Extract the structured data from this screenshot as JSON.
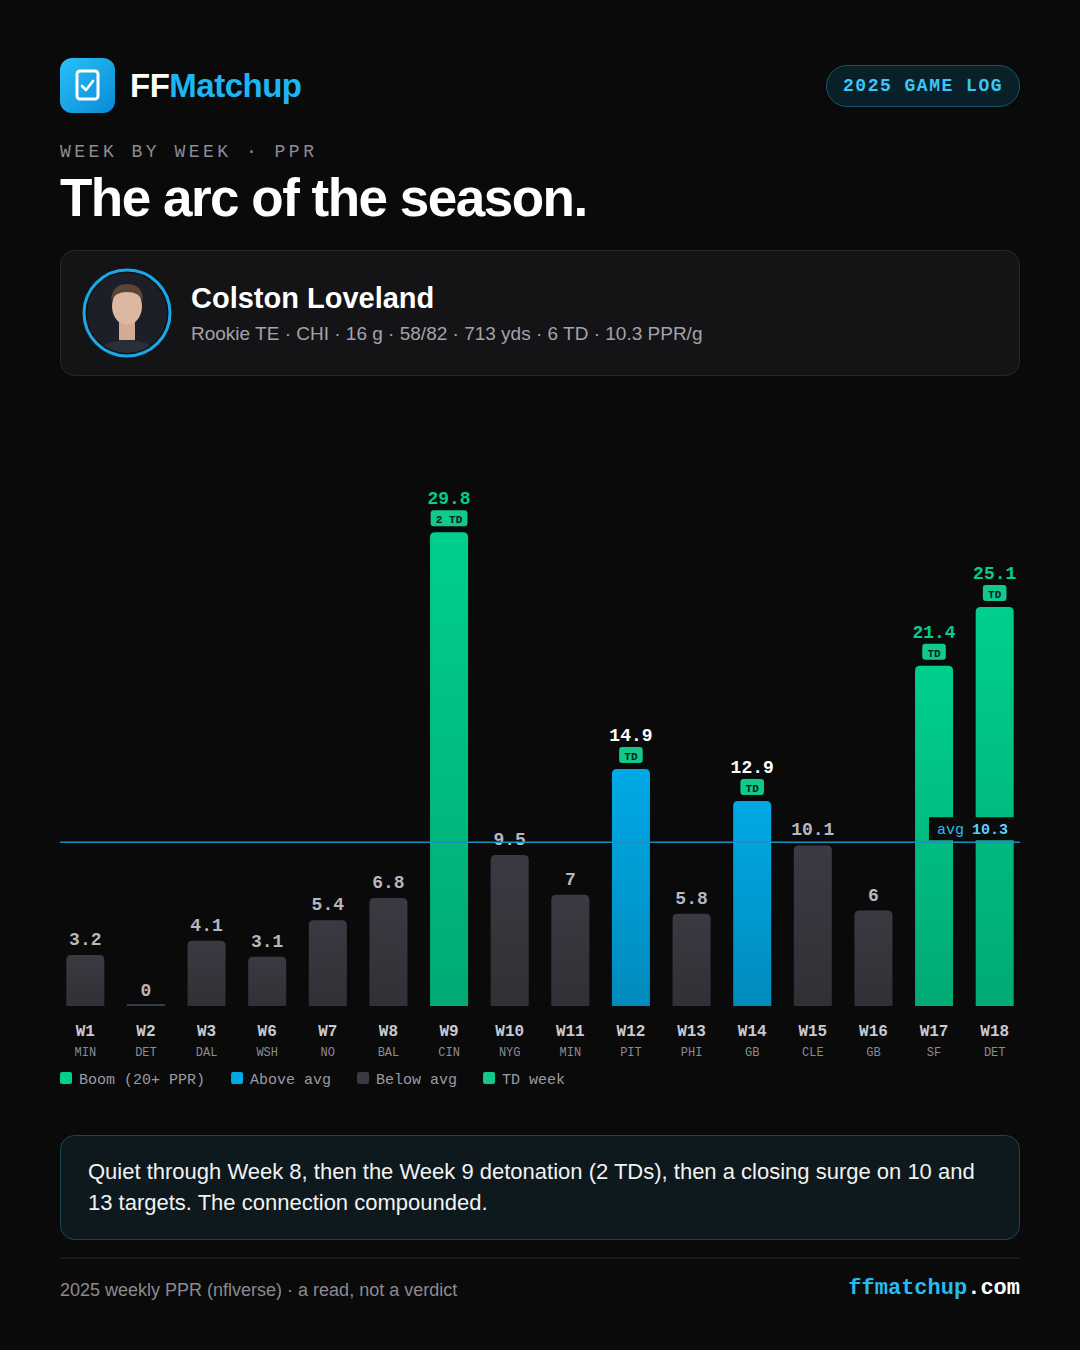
{
  "header": {
    "brand_prefix": "FF",
    "brand_suffix": "Matchup",
    "badge": "2025 GAME LOG",
    "kicker": "WEEK BY WEEK · PPR",
    "title": "The arc of the season."
  },
  "player": {
    "name": "Colston Loveland",
    "stats": "Rookie TE · CHI · 16 g · 58/82 · 713 yds · 6 TD · 10.3 PPR/g"
  },
  "chart_data": {
    "type": "bar",
    "categories": [
      "W1",
      "W2",
      "W3",
      "W6",
      "W7",
      "W8",
      "W9",
      "W10",
      "W11",
      "W12",
      "W13",
      "W14",
      "W15",
      "W16",
      "W17",
      "W18"
    ],
    "opponents": [
      "MIN",
      "DET",
      "DAL",
      "WSH",
      "NO",
      "BAL",
      "CIN",
      "NYG",
      "MIN",
      "PIT",
      "PHI",
      "GB",
      "CLE",
      "GB",
      "SF",
      "DET"
    ],
    "values": [
      3.2,
      0,
      4.1,
      3.1,
      5.4,
      6.8,
      29.8,
      9.5,
      7,
      14.9,
      5.8,
      12.9,
      10.1,
      6,
      21.4,
      25.1
    ],
    "colors": [
      "#3a3a42",
      "#3a3a42",
      "#3a3a42",
      "#3a3a42",
      "#3a3a42",
      "#3a3a42",
      "#00cf8d",
      "#3a3a42",
      "#3a3a42",
      "#00a9e6",
      "#3a3a42",
      "#00a9e6",
      "#3a3a42",
      "#3a3a42",
      "#00cf8d",
      "#00cf8d"
    ],
    "td_labels": [
      null,
      null,
      null,
      null,
      null,
      null,
      "2 TD",
      null,
      null,
      "TD",
      null,
      "TD",
      null,
      null,
      "TD",
      "TD"
    ],
    "reference_line": {
      "label": "avg",
      "value": 10.3
    },
    "ylim": [
      0,
      30
    ],
    "tick_labels": false,
    "data_labels": true,
    "legend": "bottom",
    "legend_items": [
      {
        "label": "Boom (20+ PPR)",
        "color": "#00cf8d"
      },
      {
        "label": "Above avg",
        "color": "#00a9e6"
      },
      {
        "label": "Below avg",
        "color": "#3a3a42"
      },
      {
        "label": "TD week",
        "color": "#10c98b"
      }
    ]
  },
  "caption": "Quiet through Week 8, then the Week 9 detonation (2 TDs), then a closing surge on 10 and 13 targets. The connection compounded.",
  "footer": {
    "source": "2025 weekly PPR (nflverse) · a read, not a verdict",
    "site_prefix": "ffmatchup",
    "site_suffix": ".com"
  }
}
